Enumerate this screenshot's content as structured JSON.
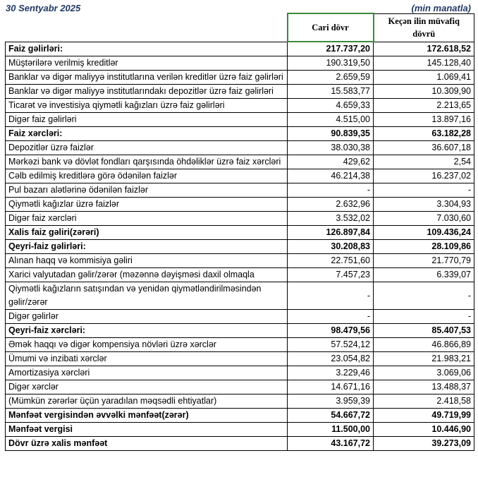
{
  "header": {
    "date": "30 Sentyabr 2025",
    "unit": "(min manatla)"
  },
  "table": {
    "columns": [
      "Cari dövr",
      "Keçən ilin müvafiq dövrü"
    ],
    "rows": [
      {
        "label": "Faiz gəlirləri:",
        "current": "217.737,20",
        "previous": "172.618,52",
        "bold": true
      },
      {
        "label": "Müştərilərə verilmiş kreditlər",
        "current": "190.319,50",
        "previous": "145.128,40",
        "bold": false
      },
      {
        "label": "Banklar və digər maliyyə institutlarına verilən kreditlər üzrə faiz gəlirləri",
        "current": "2.659,59",
        "previous": "1.069,41",
        "bold": false
      },
      {
        "label": "Banklar və digər maliyyə institutlarındakı depozitlər üzrə faiz gəlirləri",
        "current": "15.583,77",
        "previous": "10.309,90",
        "bold": false
      },
      {
        "label": "Ticarət və investisiya qiymətli kağızları üzrə faiz gəlirləri",
        "current": "4.659,33",
        "previous": "2.213,65",
        "bold": false
      },
      {
        "label": "Digər faiz gəlirləri",
        "current": "4.515,00",
        "previous": "13.897,16",
        "bold": false
      },
      {
        "label": "Faiz xərcləri:",
        "current": "90.839,35",
        "previous": "63.182,28",
        "bold": true
      },
      {
        "label": "Depozitlər üzrə faizlər",
        "current": "38.030,38",
        "previous": "36.607,18",
        "bold": false
      },
      {
        "label": "Mərkəzi bank və dövlət fondları qarşısında öhdəliklər üzrə faiz xərcləri",
        "current": "429,62",
        "previous": "2,54",
        "bold": false
      },
      {
        "label": "Cəlb edilmiş kreditlərə görə ödənilən faizlər",
        "current": "46.214,38",
        "previous": "16.237,02",
        "bold": false
      },
      {
        "label": "Pul bazarı alətlərinə ödənilən faizlər",
        "current": "-",
        "previous": "-",
        "bold": false
      },
      {
        "label": "Qiymətli kağızlar üzrə faizlər",
        "current": "2.632,96",
        "previous": "3.304,93",
        "bold": false
      },
      {
        "label": "Digər faiz xərcləri",
        "current": "3.532,02",
        "previous": "7.030,60",
        "bold": false
      },
      {
        "label": "Xalis faiz gəliri(zərəri)",
        "current": "126.897,84",
        "previous": "109.436,24",
        "bold": true
      },
      {
        "label": "Qeyri-faiz gəlirləri:",
        "current": "30.208,83",
        "previous": "28.109,86",
        "bold": true
      },
      {
        "label": "Alınan haqq və kommisiya gəliri",
        "current": "22.751,60",
        "previous": "21.770,79",
        "bold": false
      },
      {
        "label": "Xarici valyutadan gəlir/zərər (məzənnə dəyişməsi daxil olmaqla",
        "current": "7.457,23",
        "previous": "6.339,07",
        "bold": false
      },
      {
        "label": "Qiymətli kağızların satışından və yenidən qiymətləndirilməsindən gəlir/zərər",
        "current": "-",
        "previous": "-",
        "bold": false
      },
      {
        "label": "Digər gəlirlər",
        "current": "-",
        "previous": "-",
        "bold": false
      },
      {
        "label": "Qeyri-faiz xərcləri:",
        "current": "98.479,56",
        "previous": "85.407,53",
        "bold": true
      },
      {
        "label": "Əmək haqqı və digər kompensiya növləri üzrə xərclər",
        "current": "57.524,12",
        "previous": "46.866,89",
        "bold": false
      },
      {
        "label": "Ümumi və inzibati xərclər",
        "current": "23.054,82",
        "previous": "21.983,21",
        "bold": false
      },
      {
        "label": "Amortizasiya xərcləri",
        "current": "3.229,46",
        "previous": "3.069,06",
        "bold": false
      },
      {
        "label": "Digər xərclər",
        "current": "14.671,16",
        "previous": "13.488,37",
        "bold": false
      },
      {
        "label": "(Mümkün zərərlər üçün yaradılan məqsədli ehtiyatlar)",
        "current": "3.959,39",
        "previous": "2.418,58",
        "bold": false
      },
      {
        "label": "Mənfəət vergisindən əvvəlki mənfəət(zərər)",
        "current": "54.667,72",
        "previous": "49.719,99",
        "bold": true
      },
      {
        "label": "Mənfəət vergisi",
        "current": "11.500,00",
        "previous": "10.446,90",
        "bold": true
      },
      {
        "label": "Dövr üzrə xalis mənfəət",
        "current": "43.167,72",
        "previous": "39.273,09",
        "bold": true
      }
    ]
  }
}
